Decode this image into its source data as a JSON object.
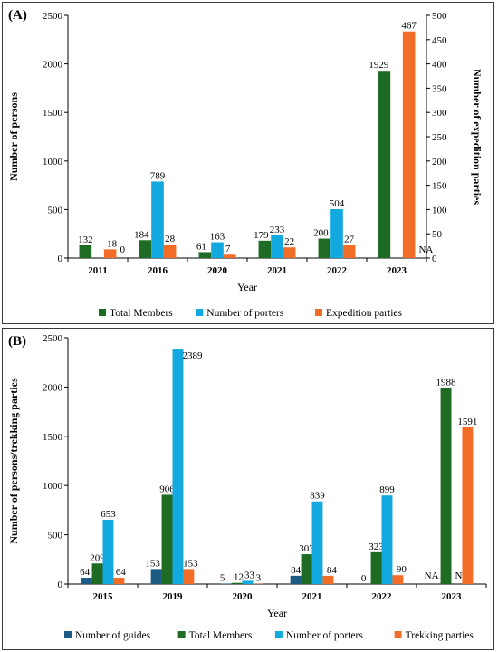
{
  "chart_data": [
    {
      "panel_label": "(A)",
      "type": "bar",
      "categories": [
        "2011",
        "2016",
        "2020",
        "2021",
        "2022",
        "2023"
      ],
      "xlabel": "Year",
      "ylabel": "Number of persons",
      "ylabel_right": "Number of expedition parties",
      "ylim": [
        0,
        2500
      ],
      "ylim_right": [
        0,
        500
      ],
      "yticks": [
        "0",
        "500",
        "1000",
        "1500",
        "2000",
        "2500"
      ],
      "yticks_right": [
        "0",
        "50",
        "100",
        "150",
        "200",
        "250",
        "300",
        "350",
        "400",
        "450",
        "500"
      ],
      "grid": false,
      "legend_position": "bottom",
      "series": [
        {
          "name": "Total Members",
          "color": "#1e6b23",
          "axis": "left",
          "values": [
            132,
            184,
            61,
            179,
            200,
            1929
          ],
          "labels": [
            "132",
            "184",
            "61",
            "179",
            "200",
            "1929"
          ]
        },
        {
          "name": "Number of porters",
          "color": "#12a9e0",
          "axis": "left",
          "values": [
            null,
            789,
            163,
            233,
            504,
            null
          ],
          "labels": [
            "",
            "789",
            "163",
            "233",
            "504",
            ""
          ]
        },
        {
          "name": "Expedition parties",
          "color": "#f26d27",
          "axis": "right",
          "values": [
            18,
            28,
            7,
            22,
            27,
            467
          ],
          "labels": [
            "18",
            "28",
            "7",
            "22",
            "27",
            "467"
          ]
        }
      ],
      "annotations": [
        {
          "category": "2011",
          "text": "0"
        },
        {
          "category": "2023",
          "text": "NA"
        }
      ]
    },
    {
      "panel_label": "(B)",
      "type": "bar",
      "categories": [
        "2015",
        "2019",
        "2020",
        "2021",
        "2022",
        "2023"
      ],
      "xlabel": "Year",
      "ylabel": "Number of persons/trekking parties",
      "ylim": [
        0,
        2500
      ],
      "yticks": [
        "0",
        "500",
        "1000",
        "1500",
        "2000",
        "2500"
      ],
      "grid": false,
      "legend_position": "bottom",
      "series": [
        {
          "name": "Number of guides",
          "color": "#1b5b84",
          "values": [
            64,
            153,
            5,
            84,
            0,
            null
          ],
          "labels": [
            "64",
            "153",
            "5",
            "84",
            "0",
            "NA"
          ]
        },
        {
          "name": "Total Members",
          "color": "#1e6b23",
          "values": [
            209,
            906,
            12,
            303,
            323,
            1988
          ],
          "labels": [
            "209",
            "906",
            "12",
            "303",
            "323",
            "1988"
          ]
        },
        {
          "name": "Number of porters",
          "color": "#12a9e0",
          "values": [
            653,
            2389,
            33,
            839,
            899,
            null
          ],
          "labels": [
            "653",
            "2389",
            "33",
            "839",
            "899",
            "NA"
          ]
        },
        {
          "name": "Trekking parties",
          "color": "#f26d27",
          "values": [
            64,
            153,
            3,
            84,
            90,
            1591
          ],
          "labels": [
            "64",
            "153",
            "3",
            "84",
            "90",
            "1591"
          ]
        }
      ]
    }
  ]
}
